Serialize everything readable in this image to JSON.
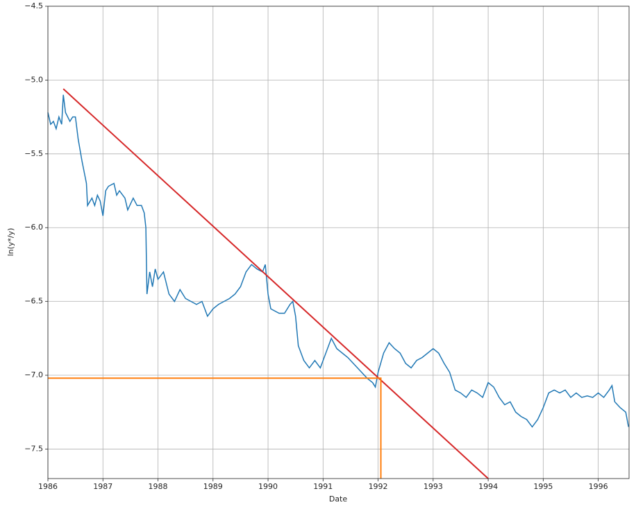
{
  "chart_data": {
    "type": "line",
    "xlabel": "Date",
    "ylabel": "ln(y*/y)",
    "xlim": [
      1986,
      1996.56
    ],
    "ylim": [
      -7.7,
      -4.5
    ],
    "xticks": [
      1986,
      1987,
      1988,
      1989,
      1990,
      1991,
      1992,
      1993,
      1994,
      1995,
      1996
    ],
    "yticks": [
      {
        "value": -7.5,
        "label": "−7.5"
      },
      {
        "value": -7.0,
        "label": "−7.0"
      },
      {
        "value": -6.5,
        "label": "−6.5"
      },
      {
        "value": -6.0,
        "label": "−6.0"
      },
      {
        "value": -5.5,
        "label": "−5.5"
      },
      {
        "value": -5.0,
        "label": "−5.0"
      },
      {
        "value": -4.5,
        "label": "−4.5"
      }
    ],
    "grid": true,
    "series": [
      {
        "color": "#1f77b4",
        "x": [
          1986.0,
          1986.05,
          1986.1,
          1986.15,
          1986.2,
          1986.25,
          1986.28,
          1986.32,
          1986.4,
          1986.45,
          1986.5,
          1986.55,
          1986.62,
          1986.7,
          1986.72,
          1986.8,
          1986.85,
          1986.9,
          1986.95,
          1987.0,
          1987.05,
          1987.1,
          1987.2,
          1987.25,
          1987.3,
          1987.4,
          1987.45,
          1987.55,
          1987.62,
          1987.7,
          1987.75,
          1987.78,
          1987.8,
          1987.85,
          1987.9,
          1987.95,
          1988.0,
          1988.1,
          1988.2,
          1988.3,
          1988.4,
          1988.5,
          1988.6,
          1988.7,
          1988.8,
          1988.9,
          1989.0,
          1989.1,
          1989.2,
          1989.3,
          1989.4,
          1989.5,
          1989.6,
          1989.7,
          1989.8,
          1989.9,
          1989.95,
          1990.0,
          1990.05,
          1990.2,
          1990.3,
          1990.4,
          1990.45,
          1990.5,
          1990.55,
          1990.65,
          1990.75,
          1990.85,
          1990.95,
          1991.05,
          1991.15,
          1991.25,
          1991.35,
          1991.45,
          1991.55,
          1991.7,
          1991.8,
          1991.9,
          1991.95,
          1992.0,
          1992.1,
          1992.2,
          1992.3,
          1992.4,
          1992.5,
          1992.6,
          1992.7,
          1992.8,
          1992.9,
          1993.0,
          1993.1,
          1993.2,
          1993.3,
          1993.4,
          1993.5,
          1993.6,
          1993.7,
          1993.8,
          1993.9,
          1994.0,
          1994.1,
          1994.2,
          1994.3,
          1994.4,
          1994.5,
          1994.6,
          1994.7,
          1994.8,
          1994.9,
          1995.0,
          1995.1,
          1995.2,
          1995.3,
          1995.4,
          1995.5,
          1995.6,
          1995.7,
          1995.8,
          1995.9,
          1996.0,
          1996.1,
          1996.2,
          1996.25,
          1996.3,
          1996.4,
          1996.5,
          1996.55
        ],
        "values": [
          -5.22,
          -5.3,
          -5.28,
          -5.33,
          -5.25,
          -5.3,
          -5.1,
          -5.22,
          -5.28,
          -5.25,
          -5.25,
          -5.4,
          -5.55,
          -5.7,
          -5.85,
          -5.8,
          -5.85,
          -5.78,
          -5.82,
          -5.92,
          -5.75,
          -5.72,
          -5.7,
          -5.78,
          -5.75,
          -5.8,
          -5.88,
          -5.8,
          -5.85,
          -5.85,
          -5.9,
          -6.0,
          -6.45,
          -6.3,
          -6.4,
          -6.28,
          -6.35,
          -6.3,
          -6.45,
          -6.5,
          -6.42,
          -6.48,
          -6.5,
          -6.52,
          -6.5,
          -6.6,
          -6.55,
          -6.52,
          -6.5,
          -6.48,
          -6.45,
          -6.4,
          -6.3,
          -6.25,
          -6.28,
          -6.3,
          -6.25,
          -6.45,
          -6.55,
          -6.58,
          -6.58,
          -6.52,
          -6.5,
          -6.6,
          -6.8,
          -6.9,
          -6.95,
          -6.9,
          -6.95,
          -6.85,
          -6.75,
          -6.82,
          -6.85,
          -6.88,
          -6.92,
          -6.98,
          -7.02,
          -7.05,
          -7.08,
          -6.98,
          -6.85,
          -6.78,
          -6.82,
          -6.85,
          -6.92,
          -6.95,
          -6.9,
          -6.88,
          -6.85,
          -6.82,
          -6.85,
          -6.92,
          -6.98,
          -7.1,
          -7.12,
          -7.15,
          -7.1,
          -7.12,
          -7.15,
          -7.05,
          -7.08,
          -7.15,
          -7.2,
          -7.18,
          -7.25,
          -7.28,
          -7.3,
          -7.35,
          -7.3,
          -7.22,
          -7.12,
          -7.1,
          -7.12,
          -7.1,
          -7.15,
          -7.12,
          -7.15,
          -7.14,
          -7.15,
          -7.12,
          -7.15,
          -7.1,
          -7.07,
          -7.18,
          -7.22,
          -7.25,
          -7.35
        ]
      },
      {
        "color": "#d62728",
        "x": [
          1986.28,
          1994.0
        ],
        "values": [
          -5.06,
          -7.7
        ]
      },
      {
        "color": "#ff7f0e",
        "x": [
          1986.0,
          1992.05,
          1992.05
        ],
        "values": [
          -7.02,
          -7.02,
          -7.7
        ]
      }
    ]
  }
}
